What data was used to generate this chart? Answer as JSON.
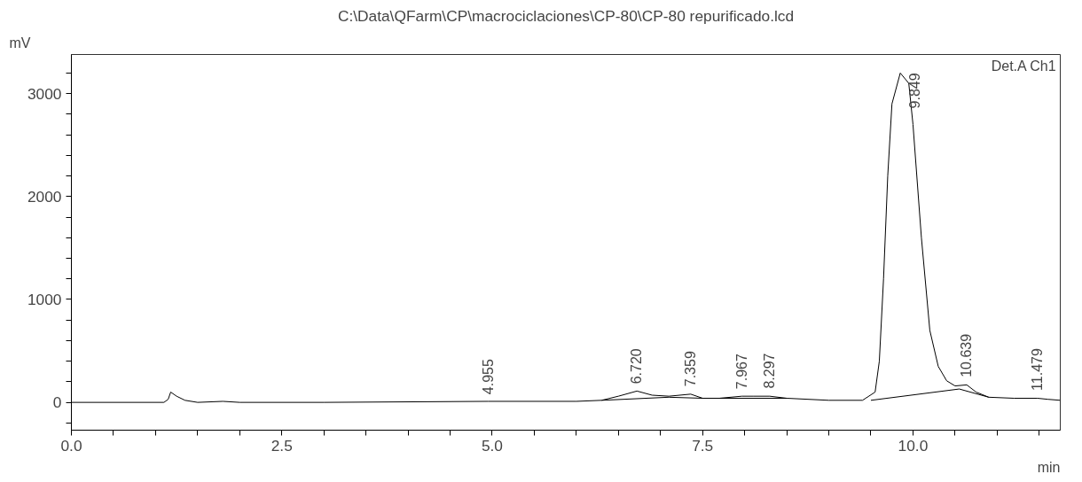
{
  "chart_data": {
    "type": "line",
    "title": "C:\\Data\\QFarm\\CP\\macrociclaciones\\CP-80\\CP-80 repurificado.lcd",
    "xlabel": "min",
    "ylabel": "mV",
    "xlim": [
      0,
      11.75
    ],
    "ylim": [
      -270,
      3380
    ],
    "xticks": [
      {
        "value": 0,
        "label": "0.0"
      },
      {
        "value": 0.5,
        "label": null
      },
      {
        "value": 1,
        "label": null
      },
      {
        "value": 1.5,
        "label": null
      },
      {
        "value": 2,
        "label": null
      },
      {
        "value": 2.5,
        "label": "2.5"
      },
      {
        "value": 3,
        "label": null
      },
      {
        "value": 3.5,
        "label": null
      },
      {
        "value": 4,
        "label": null
      },
      {
        "value": 4.5,
        "label": null
      },
      {
        "value": 5,
        "label": "5.0"
      },
      {
        "value": 5.5,
        "label": null
      },
      {
        "value": 6,
        "label": null
      },
      {
        "value": 6.5,
        "label": null
      },
      {
        "value": 7,
        "label": null
      },
      {
        "value": 7.5,
        "label": "7.5"
      },
      {
        "value": 8,
        "label": null
      },
      {
        "value": 8.5,
        "label": null
      },
      {
        "value": 9,
        "label": null
      },
      {
        "value": 9.5,
        "label": null
      },
      {
        "value": 10,
        "label": "10.0"
      },
      {
        "value": 10.5,
        "label": null
      },
      {
        "value": 11,
        "label": null
      },
      {
        "value": 11.5,
        "label": null
      }
    ],
    "yticks": [
      {
        "value": -200,
        "label": null
      },
      0,
      {
        "value": 200,
        "label": null
      },
      {
        "value": 400,
        "label": null
      },
      {
        "value": 600,
        "label": null
      },
      {
        "value": 800,
        "label": null
      },
      1000,
      {
        "value": 1200,
        "label": null
      },
      {
        "value": 1400,
        "label": null
      },
      {
        "value": 1600,
        "label": null
      },
      {
        "value": 1800,
        "label": null
      },
      2000,
      {
        "value": 2200,
        "label": null
      },
      {
        "value": 2400,
        "label": null
      },
      {
        "value": 2600,
        "label": null
      },
      {
        "value": 2800,
        "label": null
      },
      3000,
      {
        "value": 3200,
        "label": null
      }
    ],
    "grid": false,
    "series": [
      {
        "color": "#000000",
        "x": [
          0,
          1.1,
          1.15,
          1.18,
          1.25,
          1.35,
          1.5,
          1.8,
          2.0,
          3.0,
          4.955,
          6.0,
          6.3,
          6.5,
          6.72,
          6.9,
          7.1,
          7.359,
          7.5,
          7.7,
          7.967,
          8.1,
          8.297,
          8.5,
          9.0,
          9.4,
          9.55,
          9.6,
          9.65,
          9.7,
          9.75,
          9.849,
          9.95,
          10.0,
          10.1,
          10.2,
          10.3,
          10.4,
          10.5,
          10.639,
          10.75,
          10.9,
          11.2,
          11.479,
          11.6,
          11.75
        ],
        "values": [
          0,
          0,
          30,
          100,
          60,
          20,
          0,
          10,
          0,
          0,
          10,
          10,
          20,
          60,
          110,
          70,
          60,
          80,
          40,
          40,
          60,
          60,
          60,
          40,
          20,
          20,
          100,
          400,
          1200,
          2200,
          2900,
          3200,
          3100,
          2700,
          1600,
          700,
          350,
          210,
          160,
          170,
          100,
          50,
          40,
          40,
          30,
          20
        ]
      },
      {
        "color": "#000000",
        "x": [
          6.3,
          7.1,
          7.5,
          8.5,
          8.6,
          9.5,
          10.55,
          10.9
        ],
        "values": [
          20,
          50,
          40,
          40,
          null,
          20,
          130,
          50
        ]
      }
    ],
    "annotations": [
      {
        "text": "4.955",
        "x": 4.955,
        "y": 8
      },
      {
        "text": "6.720",
        "x": 6.72,
        "y": 110
      },
      {
        "text": "7.359",
        "x": 7.359,
        "y": 85
      },
      {
        "text": "7.967",
        "x": 7.967,
        "y": 60
      },
      {
        "text": "8.297",
        "x": 8.297,
        "y": 65
      },
      {
        "text": "9.849",
        "x": 9.849,
        "y": 3200
      },
      {
        "text": "10.639",
        "x": 10.639,
        "y": 175
      },
      {
        "text": "11.479",
        "x": 11.479,
        "y": 45
      },
      "Det.A Ch1"
    ]
  }
}
